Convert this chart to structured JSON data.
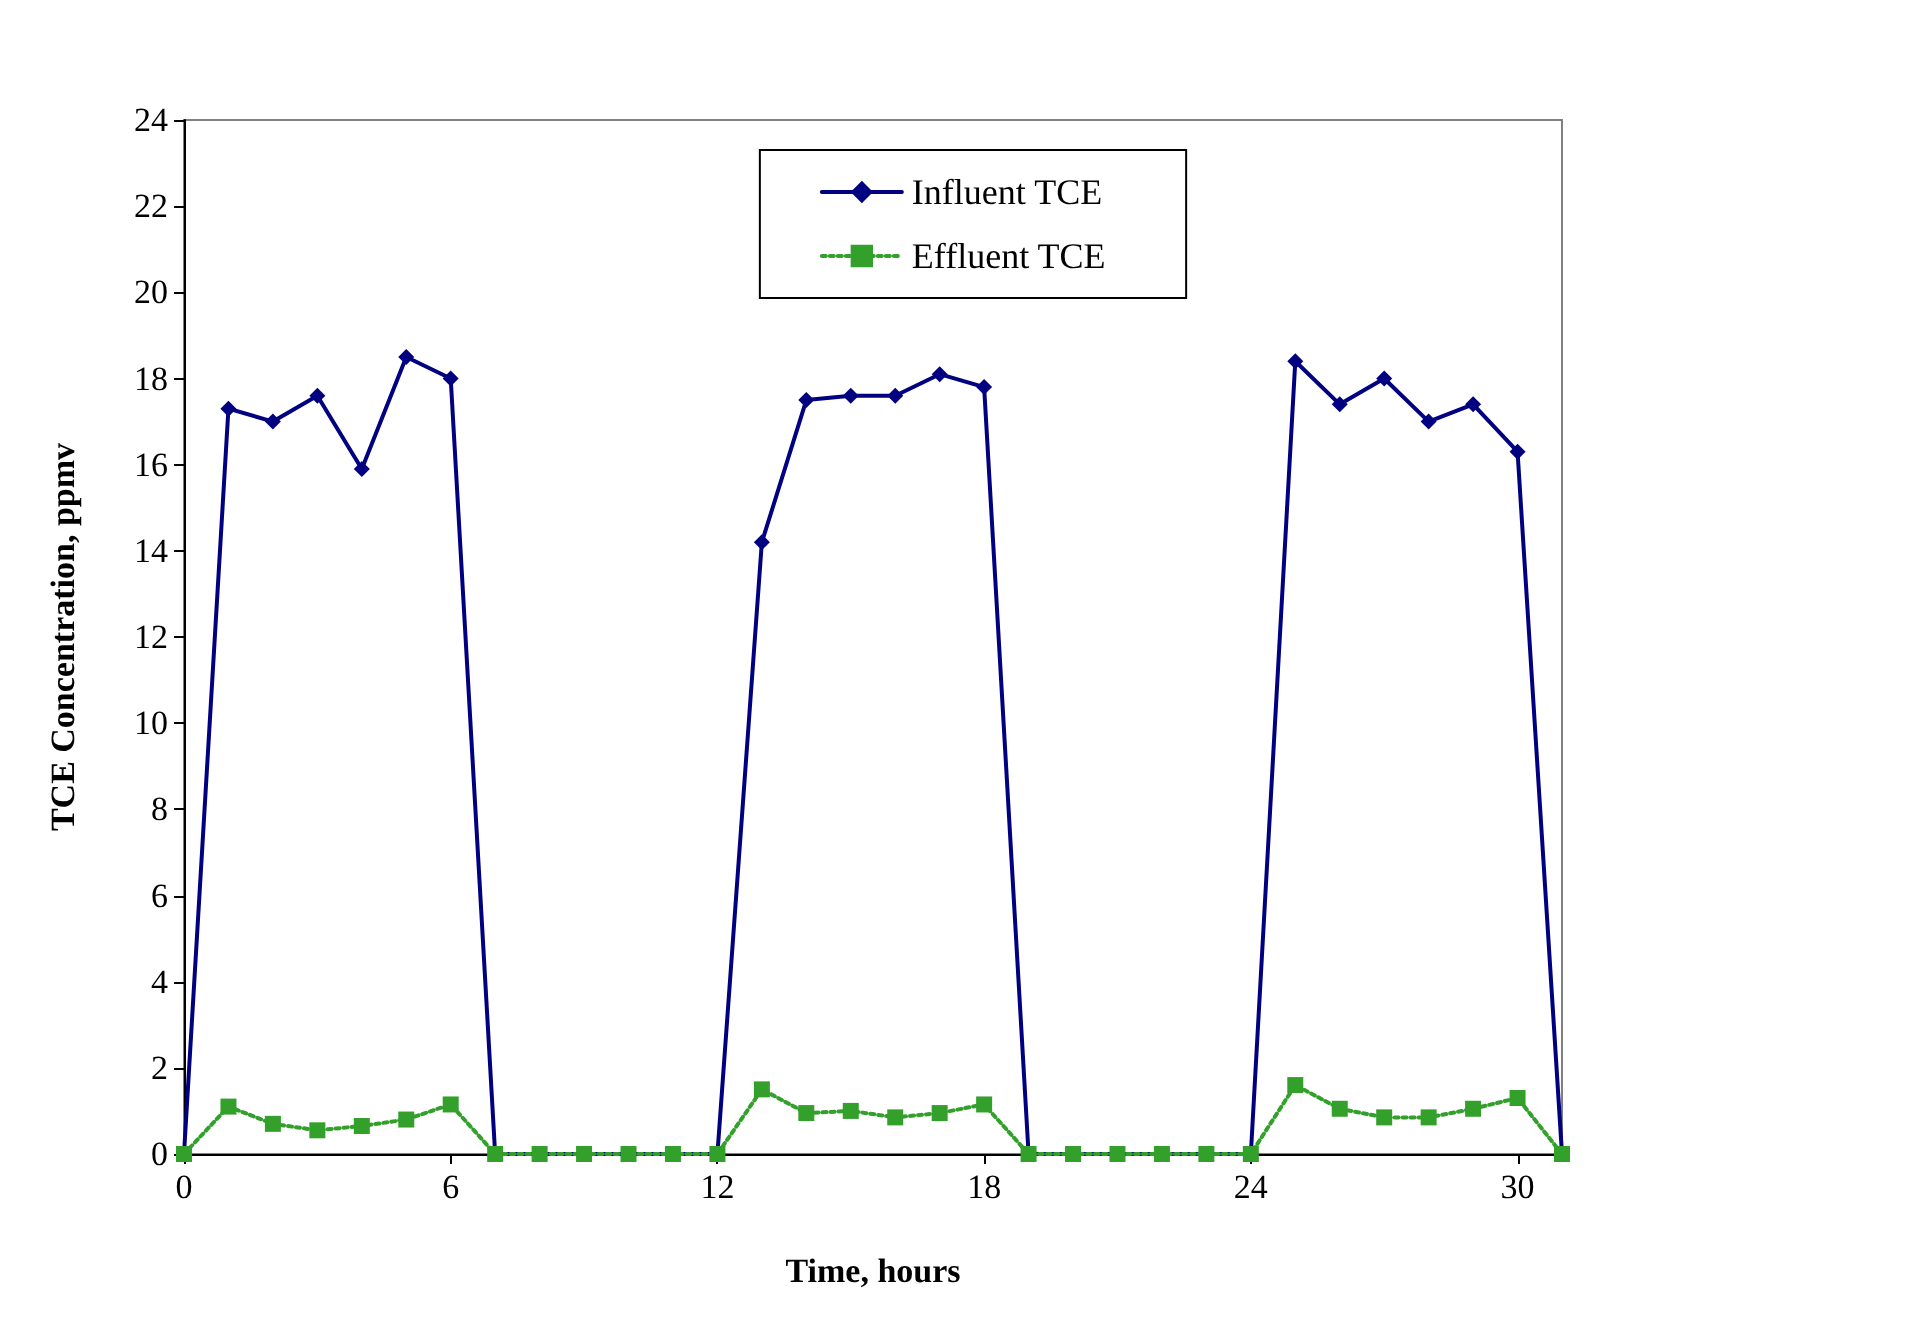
{
  "chart_data": {
    "type": "line",
    "xlabel": "Time, hours",
    "ylabel": "TCE Concentration, ppmv",
    "x": [
      0,
      1,
      2,
      3,
      4,
      5,
      6,
      7,
      8,
      9,
      10,
      11,
      12,
      13,
      14,
      15,
      16,
      17,
      18,
      19,
      20,
      21,
      22,
      23,
      24,
      25,
      26,
      27,
      28,
      29,
      30,
      31
    ],
    "series": [
      {
        "name": "Influent TCE",
        "color": "#000080",
        "marker": "diamond",
        "line_style": "solid",
        "values": [
          0,
          17.3,
          17.0,
          17.6,
          15.9,
          18.5,
          18.0,
          0,
          0,
          0,
          0,
          0,
          0,
          14.2,
          17.5,
          17.6,
          17.6,
          18.1,
          17.8,
          0,
          0,
          0,
          0,
          0,
          0,
          18.4,
          17.4,
          18.0,
          17.0,
          17.4,
          16.3,
          0
        ]
      },
      {
        "name": "Effluent TCE",
        "color": "#33a02c",
        "marker": "square",
        "line_style": "dotted",
        "values": [
          0,
          1.1,
          0.7,
          0.55,
          0.65,
          0.8,
          1.15,
          0,
          0,
          0,
          0,
          0,
          0,
          1.5,
          0.95,
          1.0,
          0.85,
          0.95,
          1.15,
          0,
          0,
          0,
          0,
          0,
          0,
          1.6,
          1.05,
          0.85,
          0.85,
          1.05,
          1.3,
          0
        ]
      }
    ],
    "xlim": [
      0,
      31
    ],
    "xticks": [
      0,
      6,
      12,
      18,
      24,
      30
    ],
    "ylim": [
      0,
      24
    ],
    "yticks": [
      0,
      2,
      4,
      6,
      8,
      10,
      12,
      14,
      16,
      18,
      20,
      22,
      24
    ],
    "grid": false,
    "legend": "top"
  }
}
